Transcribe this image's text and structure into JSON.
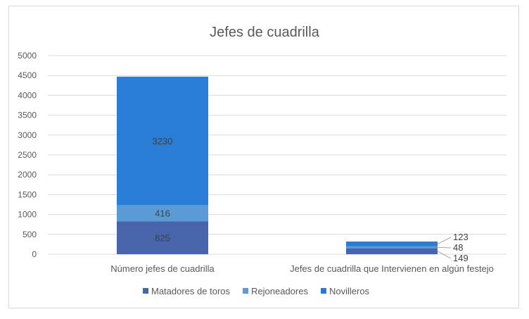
{
  "chart_data": {
    "type": "bar",
    "stacked": true,
    "title": "Jefes de cuadrilla",
    "categories": [
      "Número jefes de cuadrilla",
      "Jefes de cuadrilla que Intervienen en algún festejo"
    ],
    "series": [
      {
        "name": "Matadores de toros",
        "color": "#4864ab",
        "values": [
          825,
          149
        ]
      },
      {
        "name": "Rejoneadores",
        "color": "#5b9bd5",
        "values": [
          416,
          48
        ]
      },
      {
        "name": "Novilleros",
        "color": "#2a7dd6",
        "values": [
          3230,
          123
        ]
      }
    ],
    "ylim": [
      0,
      5000
    ],
    "yticks": [
      0,
      500,
      1000,
      1500,
      2000,
      2500,
      3000,
      3500,
      4000,
      4500,
      5000
    ],
    "grid": true,
    "legend": "bottom",
    "xlabel": "",
    "ylabel": ""
  }
}
